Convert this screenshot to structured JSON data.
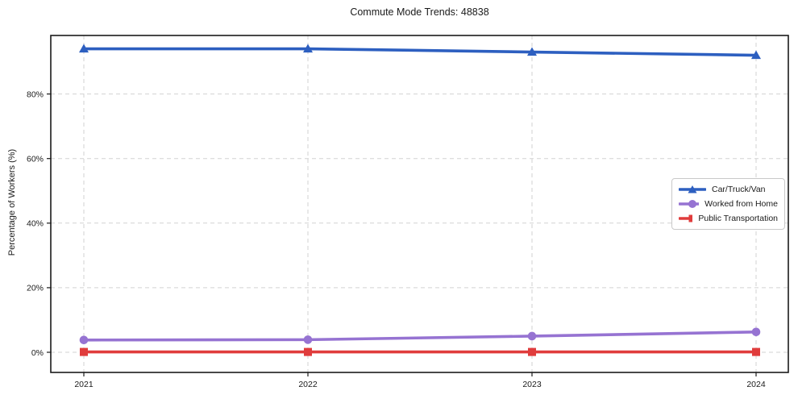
{
  "title": "Commute Mode Trends: 48838",
  "y_axis_label": "Percentage of Workers (%)",
  "x_tick_labels": [
    "2021",
    "2022",
    "2023",
    "2024"
  ],
  "y_tick_labels": [
    "0%",
    "20%",
    "40%",
    "60%",
    "80%"
  ],
  "legend_entries": [
    "Car/Truck/Van",
    "Worked from Home",
    "Public Transportation"
  ],
  "colors": {
    "car_truck_van": "#2d5fc0",
    "worked_from_home": "#9673d2",
    "public_transportation": "#e03c3c",
    "gridline": "#d2d2d2",
    "spine": "#1a1a1a"
  },
  "chart_data": {
    "type": "line",
    "title": "Commute Mode Trends: 48838",
    "xlabel": "",
    "ylabel": "Percentage of Workers (%)",
    "x": [
      2021,
      2022,
      2023,
      2024
    ],
    "categories": [
      "2021",
      "2022",
      "2023",
      "2024"
    ],
    "series": [
      {
        "name": "Car/Truck/Van",
        "color": "#2d5fc0",
        "marker": "triangle",
        "values": [
          94.0,
          94.0,
          93.0,
          92.0
        ]
      },
      {
        "name": "Worked from Home",
        "color": "#9673d2",
        "marker": "circle",
        "values": [
          3.8,
          3.9,
          5.0,
          6.3
        ]
      },
      {
        "name": "Public Transportation",
        "color": "#e03c3c",
        "marker": "square",
        "values": [
          0.1,
          0.1,
          0.1,
          0.1
        ]
      }
    ],
    "y_ticks": [
      0,
      20,
      40,
      60,
      80
    ],
    "y_tick_labels": [
      "0%",
      "20%",
      "40%",
      "60%",
      "80%"
    ],
    "ylim": [
      -6.2,
      98.1
    ],
    "grid": true,
    "grid_style": "dashed",
    "legend_position": "center-right"
  }
}
